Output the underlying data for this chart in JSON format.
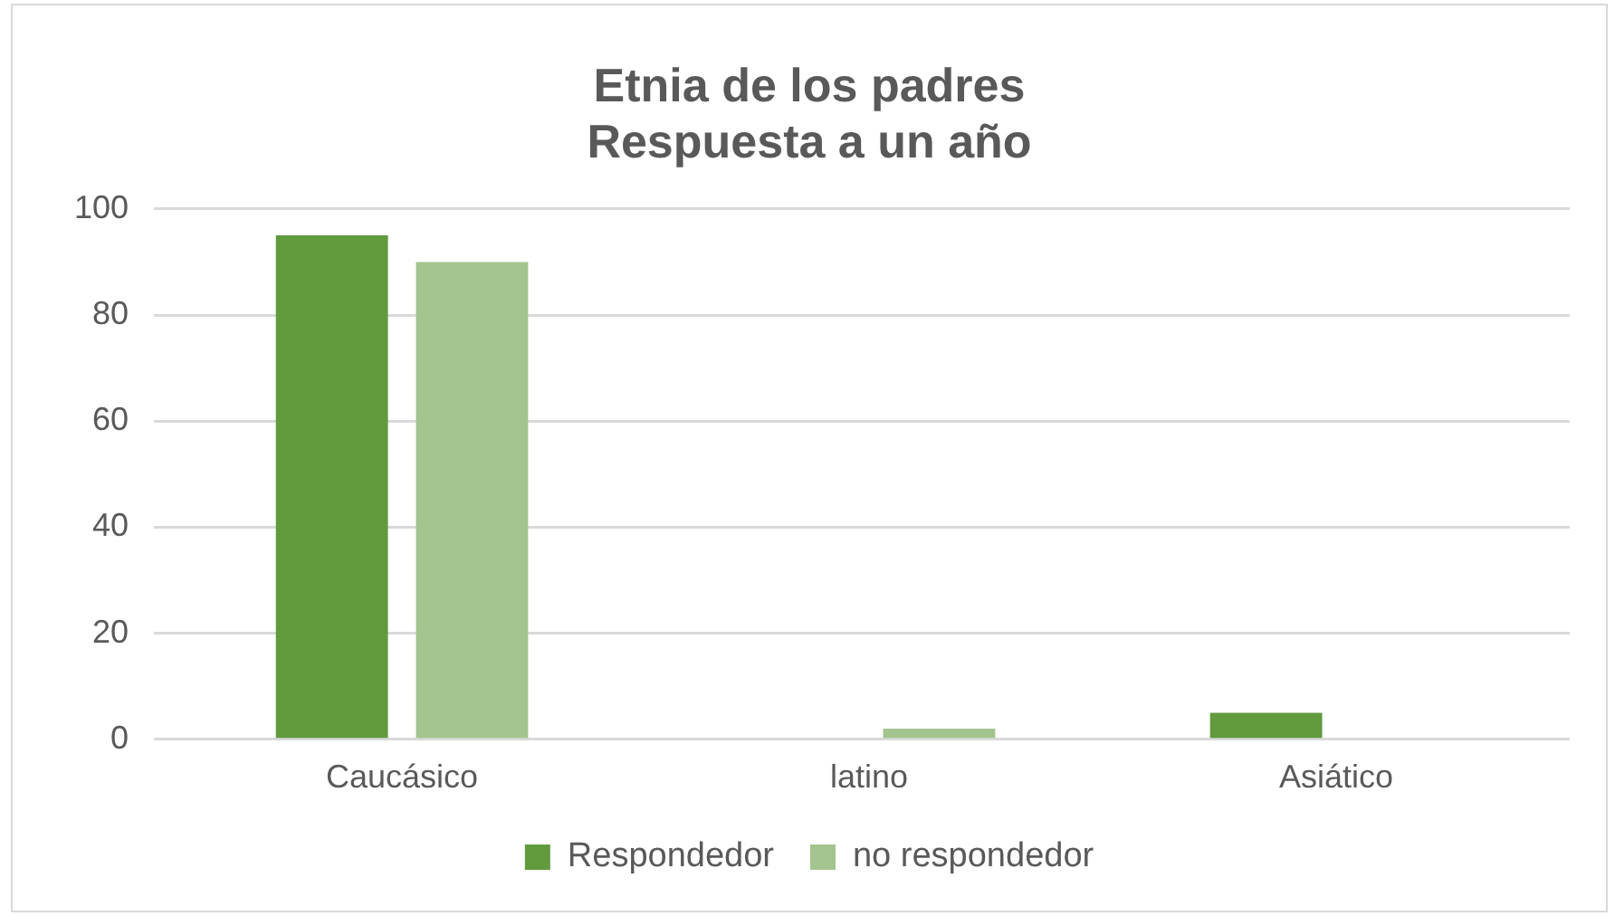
{
  "chart_data": {
    "type": "bar",
    "title": [
      "Etnia de los padres",
      "Respuesta a un año"
    ],
    "categories": [
      "Caucásico",
      "latino",
      "Asiático"
    ],
    "series": [
      {
        "name": "Respondedor",
        "color": "#629a3e",
        "values": [
          95,
          0,
          5
        ]
      },
      {
        "name": "no respondedor",
        "color": "#a3c48f",
        "values": [
          90,
          2,
          0
        ]
      }
    ],
    "ylim": [
      0,
      100
    ],
    "yticks": [
      0,
      20,
      40,
      60,
      80,
      100
    ],
    "grid": "y",
    "legend": "bottom"
  }
}
